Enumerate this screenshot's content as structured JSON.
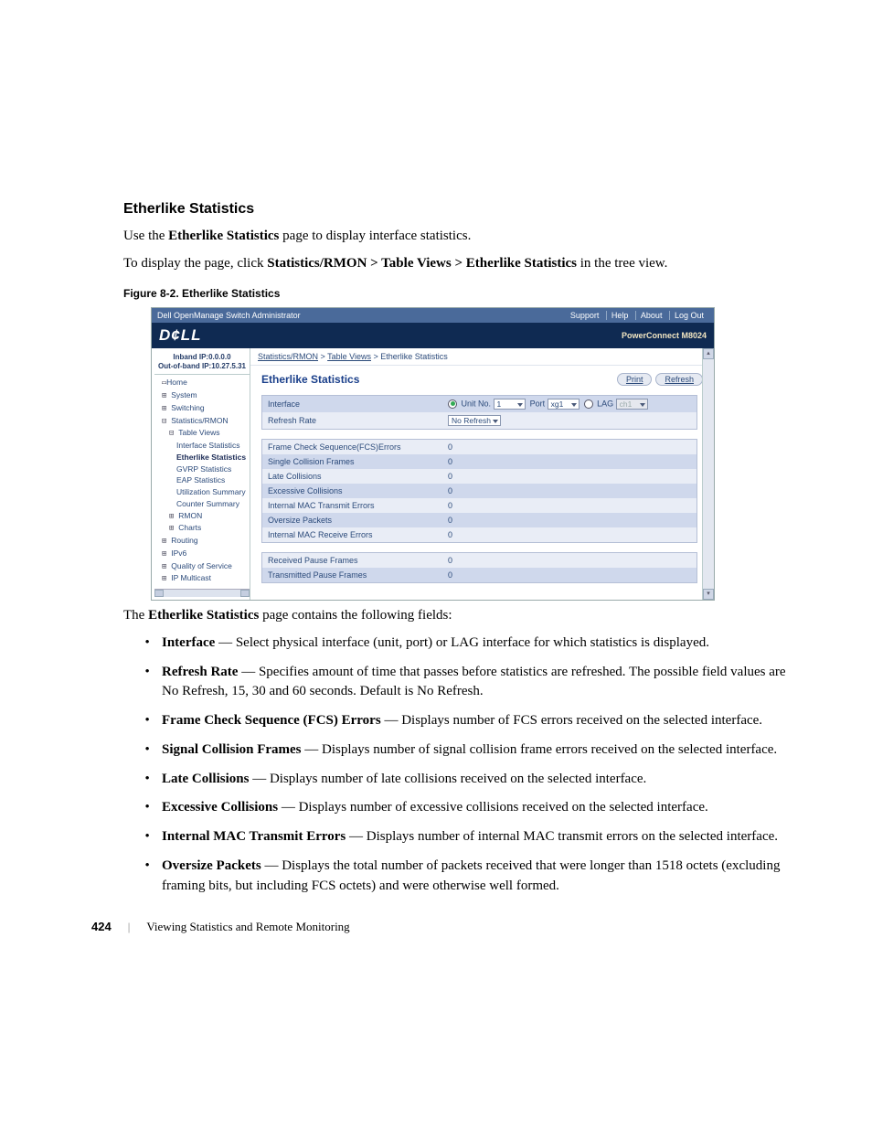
{
  "heading": "Etherlike Statistics",
  "intro1_a": "Use the ",
  "intro1_b": "Etherlike Statistics",
  "intro1_c": " page to display interface statistics.",
  "intro2_a": "To display the page, click ",
  "intro2_b": "Statistics/RMON > Table Views > Etherlike Statistics",
  "intro2_c": " in the tree view.",
  "figcap": "Figure 8-2.    Etherlike Statistics",
  "bodyintro_a": "The ",
  "bodyintro_b": "Etherlike Statistics",
  "bodyintro_c": " page contains the following fields:",
  "shot": {
    "titlebar": "Dell OpenManage Switch Administrator",
    "nav": [
      "Support",
      "Help",
      "About",
      "Log Out"
    ],
    "logo": "D¢LL",
    "model": "PowerConnect M8024",
    "ip1": "Inband IP:0.0.0.0",
    "ip2": "Out-of-band IP:10.27.5.31",
    "tree": {
      "home": "Home",
      "system": "System",
      "switching": "Switching",
      "stats": "Statistics/RMON",
      "tableviews": "Table Views",
      "ifstats": "Interface Statistics",
      "ethstats": "Etherlike Statistics",
      "gvrp": "GVRP Statistics",
      "eap": "EAP Statistics",
      "util": "Utilization Summary",
      "counter": "Counter Summary",
      "rmon": "RMON",
      "charts": "Charts",
      "routing": "Routing",
      "ipv6": "IPv6",
      "qos": "Quality of Service",
      "ipmc": "IP Multicast"
    },
    "crumb": {
      "a": "Statistics/RMON",
      "b": "Table Views",
      "c": "Etherlike Statistics"
    },
    "pagetitle": "Etherlike Statistics",
    "btn_print": "Print",
    "btn_refresh": "Refresh",
    "rows": {
      "interface": "Interface",
      "unitno": "Unit No.",
      "unitval": "1",
      "port": "Port",
      "portval": "xg1",
      "lag": "LAG",
      "lagval": "ch1",
      "refresh": "Refresh Rate",
      "refreshval": "No Refresh",
      "fcs": "Frame Check Sequence(FCS)Errors",
      "fcs_v": "0",
      "single": "Single Collision Frames",
      "single_v": "0",
      "late": "Late Collisions",
      "late_v": "0",
      "excess": "Excessive Collisions",
      "excess_v": "0",
      "txerr": "Internal MAC Transmit Errors",
      "txerr_v": "0",
      "oversize": "Oversize Packets",
      "oversize_v": "0",
      "rxerr": "Internal MAC Receive Errors",
      "rxerr_v": "0",
      "rxpause": "Received Pause Frames",
      "rxpause_v": "0",
      "txpause": "Transmitted Pause Frames",
      "txpause_v": "0"
    }
  },
  "fields": [
    {
      "t": "Interface",
      "d": " — Select physical interface (unit, port) or LAG interface for which statistics is displayed."
    },
    {
      "t": "Refresh Rate",
      "d": " — Specifies amount of time that passes before statistics are refreshed. The possible field values are No Refresh, 15, 30 and 60 seconds. Default is No Refresh."
    },
    {
      "t": "Frame Check Sequence (FCS) Errors",
      "d": " — Displays number of FCS errors received on the selected interface."
    },
    {
      "t": "Signal Collision Frames",
      "d": " — Displays number of signal collision frame errors received on the selected interface."
    },
    {
      "t": "Late Collisions",
      "d": " — Displays number of late collisions received on the selected interface."
    },
    {
      "t": "Excessive Collisions",
      "d": " — Displays number of excessive collisions received on the selected interface."
    },
    {
      "t": "Internal MAC Transmit Errors",
      "d": " — Displays number of internal MAC transmit errors on the selected interface."
    },
    {
      "t": "Oversize Packets",
      "d": " — Displays the total number of packets received that were longer than 1518 octets (excluding framing bits, but including FCS octets) and were otherwise well formed."
    }
  ],
  "footer": {
    "page": "424",
    "chapter": "Viewing Statistics and Remote Monitoring"
  }
}
